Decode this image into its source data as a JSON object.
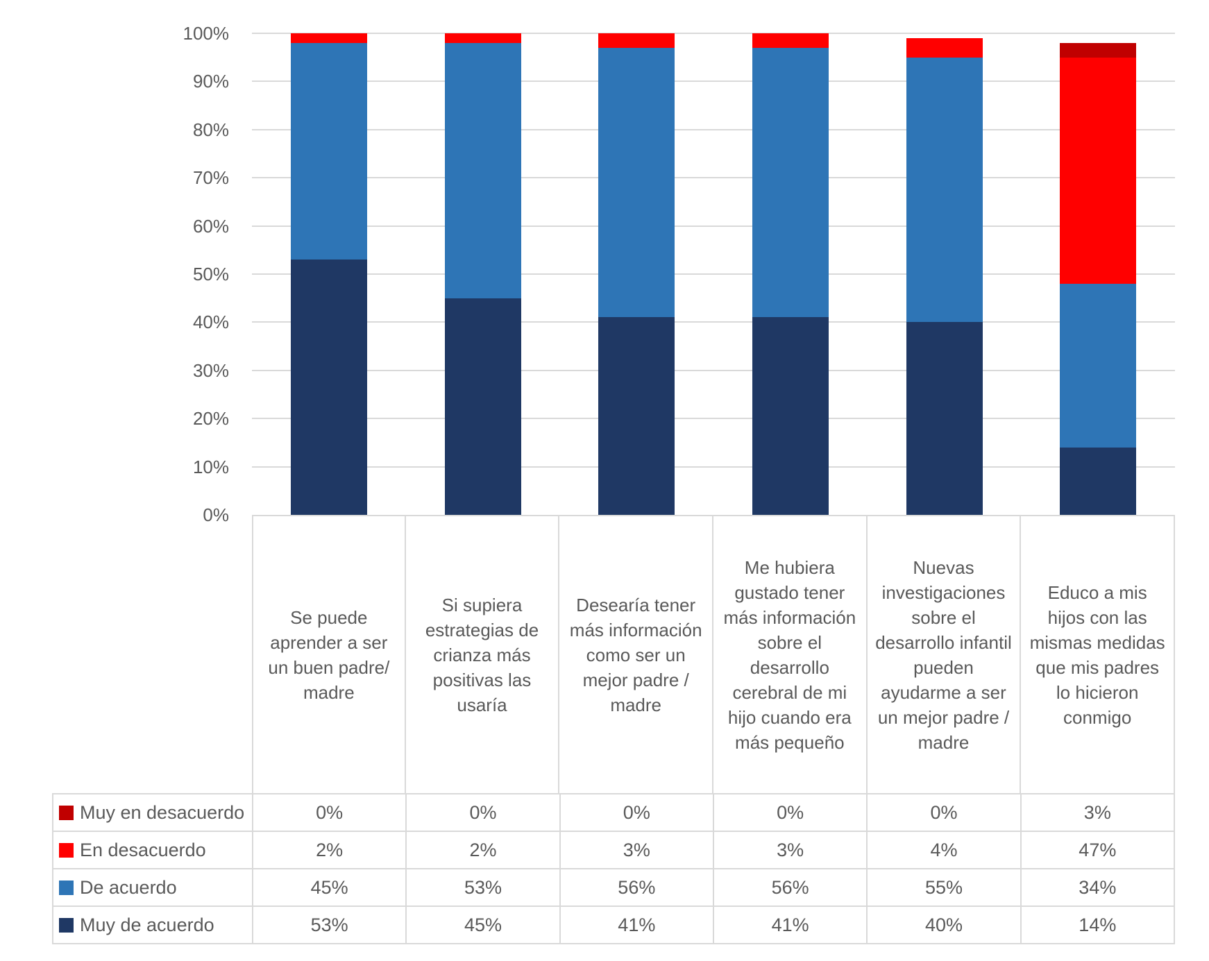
{
  "chart_data": {
    "type": "bar",
    "subtype": "stacked-column-percent",
    "title": "",
    "xlabel": "",
    "ylabel": "",
    "grid": true,
    "legend_position": "data-table-left-column",
    "y_axis": {
      "min": 0,
      "max": 100,
      "step": 10,
      "tick_labels": [
        "0%",
        "10%",
        "20%",
        "30%",
        "40%",
        "50%",
        "60%",
        "70%",
        "80%",
        "90%",
        "100%"
      ]
    },
    "categories": [
      "Se puede aprender a ser un buen padre/ madre",
      "Si supiera estrategias de crianza más positivas las usaría",
      "Desearía tener más información como ser un mejor padre / madre",
      "Me hubiera gustado tener más información sobre el desarrollo cerebral de mi hijo cuando era más pequeño",
      "Nuevas investigaciones sobre el desarrollo infantil pueden ayudarme a ser un mejor padre / madre",
      "Educo a mis hijos con las mismas medidas que mis padres lo hicieron conmigo"
    ],
    "series": [
      {
        "name": "Muy de acuerdo",
        "color": "#1F3864",
        "values": [
          53,
          45,
          41,
          41,
          40,
          14
        ]
      },
      {
        "name": "De acuerdo",
        "color": "#2E75B6",
        "values": [
          45,
          53,
          56,
          56,
          55,
          34
        ]
      },
      {
        "name": "En desacuerdo",
        "color": "#FF0000",
        "values": [
          2,
          2,
          3,
          3,
          4,
          47
        ]
      },
      {
        "name": "Muy en desacuerdo",
        "color": "#C00000",
        "values": [
          0,
          0,
          0,
          0,
          0,
          3
        ]
      }
    ],
    "stack_order_bottom_to_top": [
      "Muy de acuerdo",
      "De acuerdo",
      "En desacuerdo",
      "Muy en desacuerdo"
    ]
  },
  "data_table": {
    "rows": [
      {
        "label": "Muy en desacuerdo",
        "color": "#C00000",
        "values": [
          "0%",
          "0%",
          "0%",
          "0%",
          "0%",
          "3%"
        ]
      },
      {
        "label": "En desacuerdo",
        "color": "#FF0000",
        "values": [
          "2%",
          "2%",
          "3%",
          "3%",
          "4%",
          "47%"
        ]
      },
      {
        "label": "De acuerdo",
        "color": "#2E75B6",
        "values": [
          "45%",
          "53%",
          "56%",
          "56%",
          "55%",
          "34%"
        ]
      },
      {
        "label": "Muy de acuerdo",
        "color": "#1F3864",
        "values": [
          "53%",
          "45%",
          "41%",
          "41%",
          "40%",
          "14%"
        ]
      }
    ]
  },
  "style": {
    "text_color": "#595959",
    "grid_color": "#D9D9D9",
    "background": "#FFFFFF"
  }
}
